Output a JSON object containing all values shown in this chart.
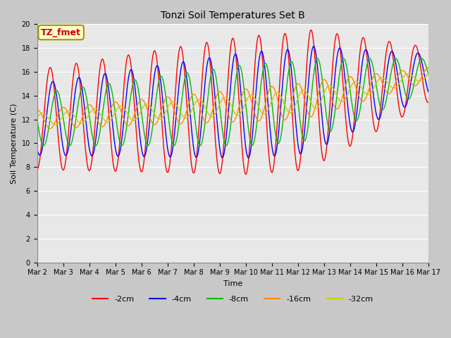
{
  "title": "Tonzi Soil Temperatures Set B",
  "xlabel": "Time",
  "ylabel": "Soil Temperature (C)",
  "ylim": [
    0,
    20
  ],
  "xlim": [
    0,
    15
  ],
  "fig_bg_color": "#c8c8c8",
  "plot_bg_color": "#e8e8e8",
  "grid_color": "#ffffff",
  "series_colors": {
    "-2cm": "#ff0000",
    "-4cm": "#0000ff",
    "-8cm": "#00bb00",
    "-16cm": "#ff8800",
    "-32cm": "#cccc00"
  },
  "legend_label": "TZ_fmet",
  "legend_box_facecolor": "#ffffcc",
  "legend_box_edgecolor": "#999900",
  "xtick_labels": [
    "Mar 2",
    "Mar 3",
    "Mar 4",
    "Mar 5",
    "Mar 6",
    "Mar 7",
    "Mar 8",
    "Mar 9",
    "Mar 10",
    "Mar 11",
    "Mar 12",
    "Mar 13",
    "Mar 14",
    "Mar 15",
    "Mar 16",
    "Mar 17"
  ],
  "ytick_values": [
    0,
    2,
    4,
    6,
    8,
    10,
    12,
    14,
    16,
    18,
    20
  ]
}
